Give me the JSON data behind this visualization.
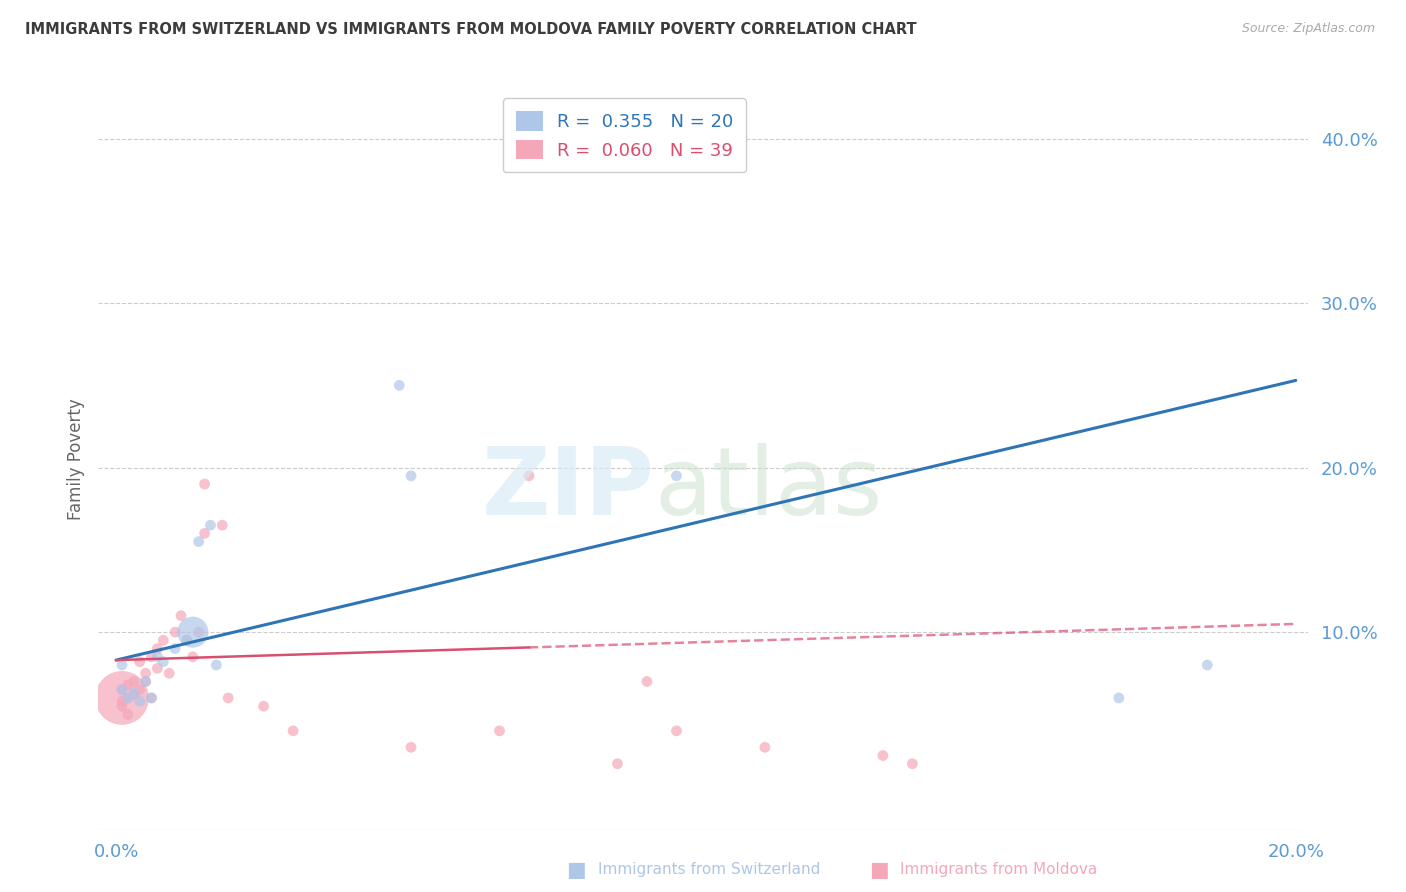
{
  "title": "IMMIGRANTS FROM SWITZERLAND VS IMMIGRANTS FROM MOLDOVA FAMILY POVERTY CORRELATION CHART",
  "source": "Source: ZipAtlas.com",
  "ylabel": "Family Poverty",
  "xlim": [
    -0.003,
    0.202
  ],
  "ylim": [
    -0.02,
    0.43
  ],
  "swiss_R": 0.355,
  "swiss_N": 20,
  "moldova_R": 0.06,
  "moldova_N": 39,
  "swiss_color": "#aec6e8",
  "swiss_line_color": "#2e75b6",
  "moldova_color": "#f4a7b9",
  "moldova_line_color": "#d94f70",
  "swiss_x": [
    0.001,
    0.002,
    0.003,
    0.004,
    0.005,
    0.006,
    0.007,
    0.008,
    0.01,
    0.012,
    0.013,
    0.014,
    0.016,
    0.017,
    0.048,
    0.05,
    0.095,
    0.17,
    0.185,
    0.001
  ],
  "swiss_y": [
    0.065,
    0.06,
    0.063,
    0.058,
    0.07,
    0.06,
    0.085,
    0.082,
    0.09,
    0.095,
    0.1,
    0.155,
    0.165,
    0.08,
    0.25,
    0.195,
    0.195,
    0.06,
    0.08,
    0.08
  ],
  "swiss_s": [
    60,
    60,
    60,
    60,
    60,
    60,
    60,
    60,
    60,
    60,
    500,
    60,
    60,
    60,
    60,
    60,
    60,
    60,
    60,
    60
  ],
  "moldova_x": [
    0.001,
    0.001,
    0.001,
    0.002,
    0.002,
    0.003,
    0.003,
    0.004,
    0.004,
    0.005,
    0.005,
    0.006,
    0.006,
    0.007,
    0.007,
    0.008,
    0.009,
    0.01,
    0.011,
    0.012,
    0.013,
    0.014,
    0.015,
    0.015,
    0.018,
    0.019,
    0.025,
    0.03,
    0.05,
    0.065,
    0.07,
    0.085,
    0.09,
    0.095,
    0.11,
    0.13,
    0.135,
    0.001,
    0.002
  ],
  "moldova_y": [
    0.065,
    0.06,
    0.058,
    0.06,
    0.068,
    0.062,
    0.07,
    0.065,
    0.082,
    0.07,
    0.075,
    0.06,
    0.085,
    0.078,
    0.09,
    0.095,
    0.075,
    0.1,
    0.11,
    0.095,
    0.085,
    0.1,
    0.16,
    0.19,
    0.165,
    0.06,
    0.055,
    0.04,
    0.03,
    0.04,
    0.195,
    0.02,
    0.07,
    0.04,
    0.03,
    0.025,
    0.02,
    0.055,
    0.05
  ],
  "moldova_s": [
    60,
    1500,
    60,
    60,
    60,
    60,
    60,
    60,
    60,
    60,
    60,
    60,
    60,
    60,
    60,
    60,
    60,
    60,
    60,
    60,
    60,
    60,
    60,
    60,
    60,
    60,
    60,
    60,
    60,
    60,
    60,
    60,
    60,
    60,
    60,
    60,
    60,
    60,
    60
  ],
  "swiss_line_x0": 0.0,
  "swiss_line_y0": 0.083,
  "swiss_line_x1": 0.2,
  "swiss_line_y1": 0.253,
  "moldova_line_x0": 0.0,
  "moldova_line_y0": 0.083,
  "moldova_line_x1": 0.2,
  "moldova_line_y1": 0.105,
  "grid_color": "#cccccc",
  "background_color": "#ffffff",
  "title_color": "#3c3c3c",
  "axis_label_color": "#5b9bd5"
}
